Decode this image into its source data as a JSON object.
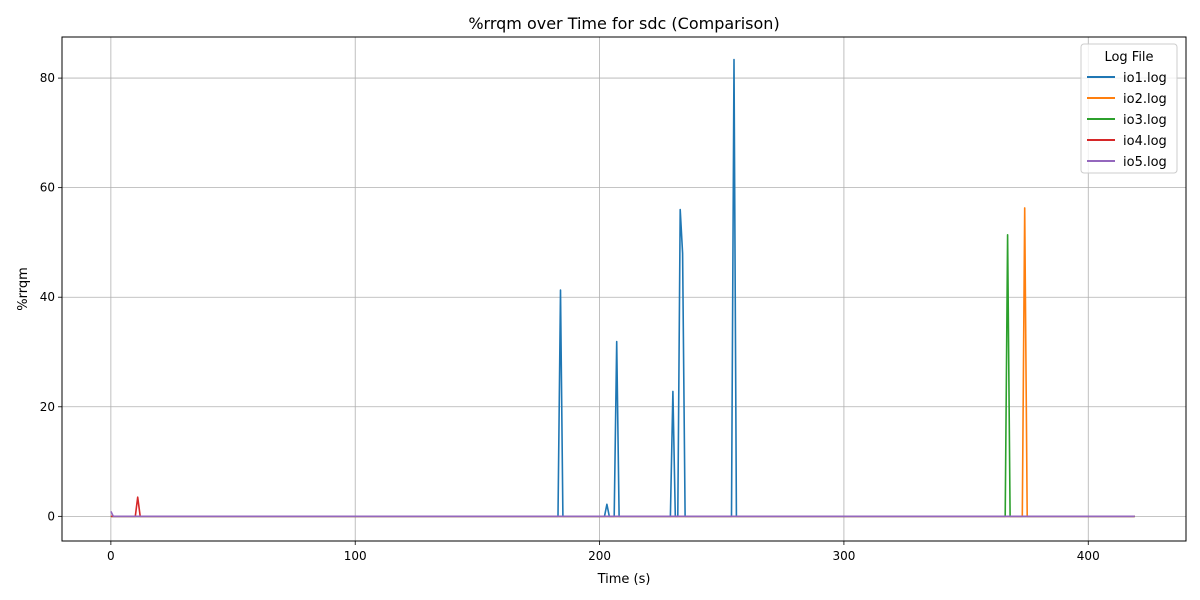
{
  "chart_data": {
    "type": "line",
    "title": "%rrqm over Time for sdc (Comparison)",
    "xlabel": "Time (s)",
    "ylabel": "%rrqm",
    "xlim": [
      -20,
      440
    ],
    "ylim": [
      -4.5,
      87.5
    ],
    "xticks": [
      0,
      100,
      200,
      300,
      400
    ],
    "yticks": [
      0,
      20,
      40,
      60,
      80
    ],
    "grid": true,
    "legend": {
      "title": "Log File",
      "position": "upper right"
    },
    "series": [
      {
        "name": "io1.log",
        "color": "#1f77b4",
        "x": [
          0,
          183,
          184,
          185,
          202,
          203,
          204,
          206,
          207,
          208,
          229,
          230,
          231,
          232,
          233,
          234,
          235,
          254,
          255,
          256,
          419
        ],
        "y": [
          0,
          0,
          41.3,
          0,
          0,
          2.2,
          0,
          0,
          31.9,
          0,
          0,
          22.8,
          0,
          0,
          56.0,
          48.0,
          0,
          0,
          83.4,
          0,
          0
        ]
      },
      {
        "name": "io2.log",
        "color": "#ff7f0e",
        "x": [
          0,
          373,
          374,
          375,
          419
        ],
        "y": [
          0,
          0,
          56.3,
          0,
          0
        ]
      },
      {
        "name": "io3.log",
        "color": "#2ca02c",
        "x": [
          0,
          366,
          367,
          368,
          419
        ],
        "y": [
          0,
          0,
          51.4,
          0,
          0
        ]
      },
      {
        "name": "io4.log",
        "color": "#d62728",
        "x": [
          0,
          10,
          11,
          12,
          419
        ],
        "y": [
          0,
          0,
          3.5,
          0,
          0
        ]
      },
      {
        "name": "io5.log",
        "color": "#9467bd",
        "x": [
          0,
          1,
          419
        ],
        "y": [
          0.9,
          0,
          0
        ]
      }
    ]
  }
}
